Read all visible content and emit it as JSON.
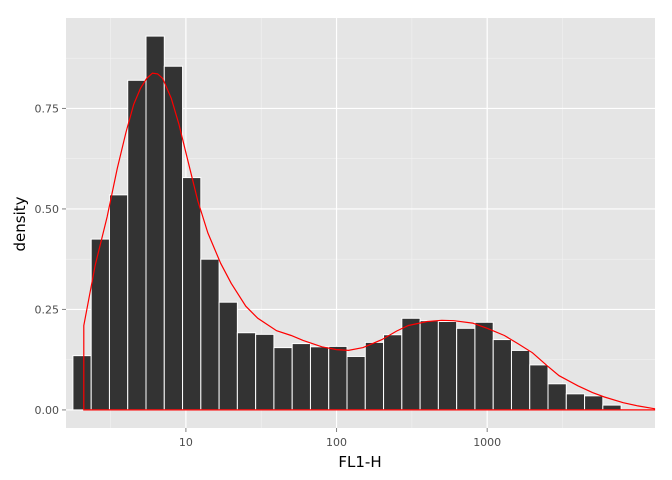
{
  "chart_data": {
    "type": "bar",
    "xlabel": "FL1-H",
    "ylabel": "density",
    "x_scale": "log10",
    "xlim": [
      1.6,
      13000
    ],
    "ylim": [
      -0.045,
      0.975
    ],
    "x_ticks": [
      {
        "value": 10,
        "label": "10"
      },
      {
        "value": 100,
        "label": "100"
      },
      {
        "value": 1000,
        "label": "1000"
      }
    ],
    "y_ticks": [
      {
        "value": 0,
        "label": "0.00"
      },
      {
        "value": 0.25,
        "label": "0.25"
      },
      {
        "value": 0.5,
        "label": "0.50"
      },
      {
        "value": 0.75,
        "label": "0.75"
      }
    ],
    "grid": true,
    "histogram": {
      "log10_start": 0.25,
      "log10_bin_width": 0.1213,
      "bar_fill": "#333333",
      "bar_stroke": "#ffffff",
      "density": [
        0.135,
        0.425,
        0.535,
        0.82,
        0.93,
        0.855,
        0.578,
        0.375,
        0.268,
        0.192,
        0.188,
        0.155,
        0.165,
        0.157,
        0.158,
        0.133,
        0.168,
        0.187,
        0.228,
        0.222,
        0.22,
        0.203,
        0.218,
        0.175,
        0.148,
        0.112,
        0.065,
        0.04,
        0.035,
        0.012
      ]
    },
    "density_curve": {
      "color": "#ff0000",
      "x": [
        2.1,
        2.5,
        3,
        3.5,
        4,
        4.5,
        5,
        5.5,
        6,
        6.5,
        7,
        8,
        9,
        10,
        12,
        14,
        17,
        20,
        25,
        30,
        40,
        50,
        60,
        80,
        100,
        120,
        150,
        200,
        250,
        300,
        400,
        500,
        600,
        800,
        1000,
        1300,
        1600,
        2000,
        2500,
        3000,
        4000,
        5000,
        6000,
        8000,
        10000,
        12900
      ],
      "y": [
        0.21,
        0.36,
        0.48,
        0.6,
        0.69,
        0.76,
        0.8,
        0.825,
        0.838,
        0.836,
        0.825,
        0.775,
        0.71,
        0.64,
        0.52,
        0.44,
        0.365,
        0.315,
        0.258,
        0.228,
        0.197,
        0.185,
        0.173,
        0.157,
        0.15,
        0.148,
        0.155,
        0.175,
        0.196,
        0.21,
        0.22,
        0.223,
        0.222,
        0.216,
        0.203,
        0.185,
        0.165,
        0.142,
        0.11,
        0.085,
        0.06,
        0.043,
        0.032,
        0.018,
        0.01,
        0.003
      ]
    }
  }
}
